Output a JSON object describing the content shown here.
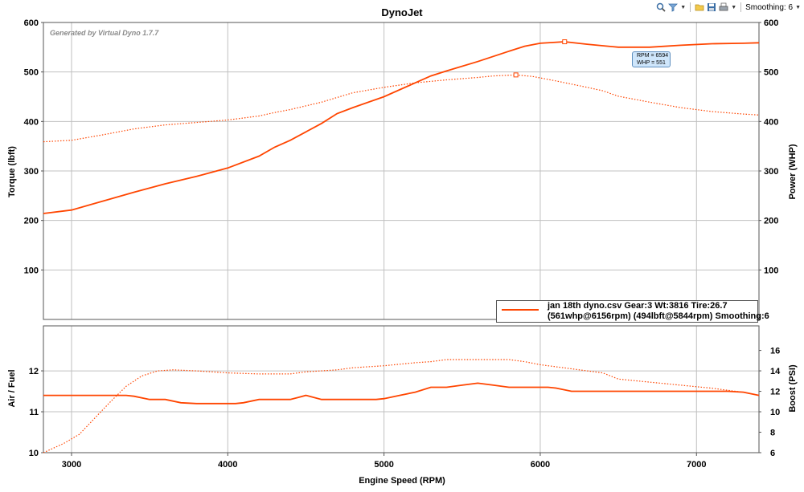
{
  "title": "DynoJet",
  "watermark": "Generated by Virtual Dyno 1.7.7",
  "toolbar": {
    "smoothing_label": "Smoothing: 6",
    "icons": [
      "zoom-icon",
      "filter-icon",
      "open-folder-icon",
      "save-icon",
      "print-icon"
    ]
  },
  "legend": {
    "line1": "jan 18th dyno.csv Gear:3 Wt:3816 Tire:26.7",
    "line2": "(561whp@6156rpm) (494lbft@5844rpm) Smoothing:6"
  },
  "callout": {
    "line1": "RPM = 6594",
    "line2": "WHP = 551"
  },
  "colors": {
    "series": "#ff4500",
    "grid": "#c0c0c0",
    "callout_bg": "#cfe6fb"
  },
  "chart_data": [
    {
      "type": "line",
      "xlabel": "",
      "ylabel": "Torque (lbft)",
      "ylabel_right": "Power (WHP)",
      "xlim": [
        2820,
        7400
      ],
      "ylim": [
        0,
        600
      ],
      "y_ticks": [
        100,
        200,
        300,
        400,
        500,
        600
      ],
      "y_ticks_right": [
        100,
        200,
        300,
        400,
        500,
        600
      ],
      "grid": true,
      "legend_position": "bottom-right",
      "series": [
        {
          "style": "solid",
          "axis": "right",
          "x": [
            2820,
            3000,
            3200,
            3400,
            3600,
            3800,
            4000,
            4200,
            4300,
            4400,
            4500,
            4600,
            4700,
            4800,
            5000,
            5200,
            5300,
            5400,
            5600,
            5800,
            5900,
            6000,
            6156,
            6300,
            6500,
            6700,
            6900,
            7100,
            7300,
            7400
          ],
          "values": [
            214,
            221,
            239,
            257,
            274,
            289,
            306,
            330,
            348,
            362,
            379,
            396,
            416,
            428,
            450,
            478,
            492,
            502,
            521,
            542,
            552,
            558,
            561,
            556,
            550,
            550,
            554,
            557,
            558,
            559
          ]
        },
        {
          "style": "dotted",
          "axis": "left",
          "x": [
            2820,
            3000,
            3200,
            3400,
            3600,
            3800,
            4000,
            4200,
            4300,
            4400,
            4600,
            4800,
            5000,
            5200,
            5400,
            5600,
            5700,
            5844,
            5950,
            6100,
            6300,
            6400,
            6500,
            6700,
            6900,
            7100,
            7300,
            7400
          ],
          "values": [
            359,
            362,
            373,
            385,
            393,
            398,
            403,
            411,
            418,
            424,
            439,
            458,
            469,
            478,
            484,
            489,
            492,
            494,
            491,
            482,
            469,
            462,
            451,
            439,
            428,
            420,
            415,
            413
          ]
        }
      ],
      "markers": [
        {
          "x": 6156,
          "y": 561
        },
        {
          "x": 5844,
          "y": 494
        }
      ]
    },
    {
      "type": "line",
      "xlabel": "Engine Speed (RPM)",
      "ylabel": "Air / Fuel",
      "ylabel_right": "Boost (PSI)",
      "xlim": [
        2820,
        7400
      ],
      "x_ticks": [
        3000,
        4000,
        5000,
        6000,
        7000
      ],
      "ylim": [
        10,
        13.1
      ],
      "y_ticks": [
        10,
        11,
        12
      ],
      "ylim_right": [
        6,
        18.4
      ],
      "y_ticks_right": [
        6,
        8,
        10,
        12,
        14,
        16
      ],
      "grid": true,
      "series": [
        {
          "style": "solid",
          "axis": "left",
          "x": [
            2820,
            3000,
            3200,
            3350,
            3400,
            3500,
            3600,
            3700,
            3800,
            3900,
            4000,
            4050,
            4100,
            4200,
            4300,
            4400,
            4450,
            4500,
            4600,
            4650,
            4700,
            4800,
            4900,
            4950,
            5000,
            5100,
            5200,
            5300,
            5400,
            5500,
            5600,
            5700,
            5800,
            5900,
            6000,
            6050,
            6100,
            6200,
            6400,
            6600,
            6800,
            7000,
            7200,
            7300,
            7400
          ],
          "values": [
            11.4,
            11.4,
            11.4,
            11.4,
            11.38,
            11.3,
            11.3,
            11.22,
            11.2,
            11.2,
            11.2,
            11.2,
            11.22,
            11.3,
            11.3,
            11.3,
            11.35,
            11.4,
            11.3,
            11.3,
            11.3,
            11.3,
            11.3,
            11.3,
            11.32,
            11.4,
            11.48,
            11.6,
            11.6,
            11.65,
            11.7,
            11.65,
            11.6,
            11.6,
            11.6,
            11.6,
            11.58,
            11.5,
            11.5,
            11.5,
            11.5,
            11.5,
            11.5,
            11.48,
            11.4
          ]
        },
        {
          "style": "dotted",
          "axis": "right",
          "x": [
            2820,
            2950,
            3050,
            3150,
            3250,
            3350,
            3450,
            3550,
            3650,
            3800,
            4000,
            4200,
            4400,
            4500,
            4700,
            4800,
            5000,
            5200,
            5300,
            5400,
            5600,
            5800,
            5900,
            6000,
            6200,
            6400,
            6500,
            6700,
            6900,
            7100,
            7300,
            7400
          ],
          "values": [
            6,
            6.9,
            7.8,
            9.4,
            11.0,
            12.5,
            13.5,
            14.0,
            14.1,
            14.0,
            13.8,
            13.7,
            13.7,
            13.9,
            14.1,
            14.3,
            14.5,
            14.8,
            14.9,
            15.1,
            15.1,
            15.1,
            14.9,
            14.6,
            14.2,
            13.8,
            13.2,
            12.9,
            12.6,
            12.3,
            11.9,
            11.6
          ]
        }
      ]
    }
  ]
}
